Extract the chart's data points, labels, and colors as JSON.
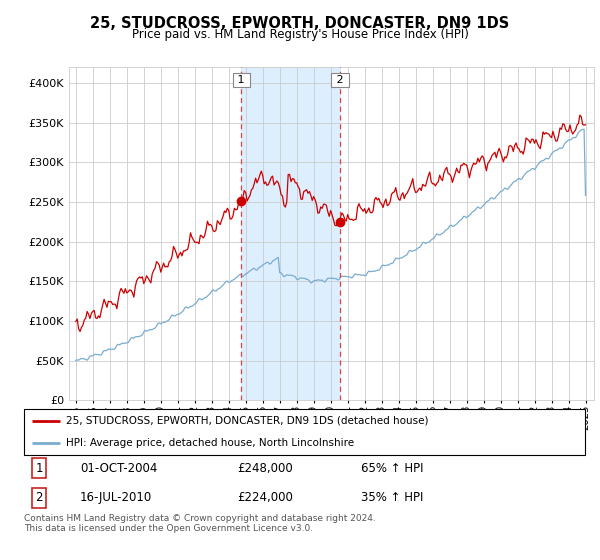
{
  "title": "25, STUDCROSS, EPWORTH, DONCASTER, DN9 1DS",
  "subtitle": "Price paid vs. HM Land Registry's House Price Index (HPI)",
  "red_label": "25, STUDCROSS, EPWORTH, DONCASTER, DN9 1DS (detached house)",
  "blue_label": "HPI: Average price, detached house, North Lincolnshire",
  "transaction1_date": "01-OCT-2004",
  "transaction1_price": "£248,000",
  "transaction1_hpi": "65% ↑ HPI",
  "transaction2_date": "16-JUL-2010",
  "transaction2_price": "£224,000",
  "transaction2_hpi": "35% ↑ HPI",
  "footer": "Contains HM Land Registry data © Crown copyright and database right 2024.\nThis data is licensed under the Open Government Licence v3.0.",
  "red_color": "#cc0000",
  "blue_color": "#7aadcf",
  "shade_color": "#ddeeff",
  "dashed_color": "#dd4444",
  "marker1_x": 2004.75,
  "marker2_x": 2010.54,
  "ylim_min": 0,
  "ylim_max": 420000,
  "xlim_min": 1994.6,
  "xlim_max": 2025.5
}
